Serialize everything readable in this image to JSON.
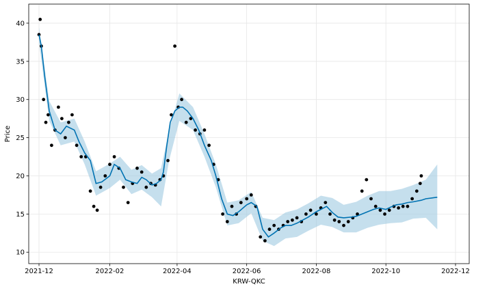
{
  "chart_data": {
    "type": "line",
    "title": "",
    "xlabel": "KRW-QKC",
    "ylabel": "Price",
    "grid": true,
    "xlim": [
      "2021-11-22",
      "2022-12-13"
    ],
    "ylim": [
      8.5,
      42.5
    ],
    "x_ticks": [
      {
        "date": "2021-12-01",
        "label": "2021-12"
      },
      {
        "date": "2022-02-01",
        "label": "2022-02"
      },
      {
        "date": "2022-04-01",
        "label": "2022-04"
      },
      {
        "date": "2022-06-01",
        "label": "2022-06"
      },
      {
        "date": "2022-08-01",
        "label": "2022-08"
      },
      {
        "date": "2022-10-01",
        "label": "2022-10"
      },
      {
        "date": "2022-12-01",
        "label": "2022-12"
      }
    ],
    "y_ticks": [
      10,
      15,
      20,
      25,
      30,
      35,
      40
    ],
    "colors": {
      "forecast_line": "#0072B2",
      "uncertainty_band": "#9ECAE1",
      "observed_points": "#000000"
    },
    "series": [
      {
        "name": "",
        "kind": "forecast",
        "x": [
          "2021-12-01",
          "2021-12-03",
          "2021-12-06",
          "2021-12-10",
          "2021-12-15",
          "2021-12-20",
          "2021-12-25",
          "2022-01-01",
          "2022-01-05",
          "2022-01-10",
          "2022-01-15",
          "2022-01-20",
          "2022-01-25",
          "2022-02-01",
          "2022-02-05",
          "2022-02-10",
          "2022-02-15",
          "2022-02-20",
          "2022-02-25",
          "2022-03-01",
          "2022-03-05",
          "2022-03-10",
          "2022-03-14",
          "2022-03-18",
          "2022-03-20",
          "2022-03-23",
          "2022-03-26",
          "2022-03-30",
          "2022-04-03",
          "2022-04-06",
          "2022-04-10",
          "2022-04-15",
          "2022-04-20",
          "2022-04-25",
          "2022-05-01",
          "2022-05-05",
          "2022-05-10",
          "2022-05-15",
          "2022-05-20",
          "2022-05-25",
          "2022-06-01",
          "2022-06-05",
          "2022-06-10",
          "2022-06-15",
          "2022-06-20",
          "2022-06-25",
          "2022-07-01",
          "2022-07-05",
          "2022-07-10",
          "2022-07-15",
          "2022-07-20",
          "2022-07-25",
          "2022-08-01",
          "2022-08-05",
          "2022-08-10",
          "2022-08-15",
          "2022-08-20",
          "2022-08-25",
          "2022-09-01",
          "2022-09-05",
          "2022-09-10",
          "2022-09-15",
          "2022-09-20",
          "2022-09-25",
          "2022-10-01",
          "2022-10-05",
          "2022-10-10",
          "2022-10-15",
          "2022-10-20",
          "2022-10-25",
          "2022-11-01",
          "2022-11-05",
          "2022-11-10",
          "2022-11-15"
        ],
        "y": [
          38.5,
          37.0,
          33.0,
          28.5,
          26.0,
          25.5,
          26.5,
          26.0,
          24.5,
          23.0,
          22.0,
          19.0,
          19.2,
          20.0,
          21.5,
          21.0,
          19.5,
          19.2,
          19.0,
          19.8,
          19.5,
          18.8,
          19.0,
          19.5,
          20.5,
          24.0,
          27.0,
          28.5,
          29.0,
          29.0,
          28.5,
          27.5,
          26.0,
          24.0,
          22.0,
          20.0,
          17.0,
          15.0,
          14.8,
          15.3,
          16.2,
          16.5,
          16.0,
          13.0,
          12.0,
          12.5,
          13.2,
          13.5,
          13.5,
          13.8,
          14.2,
          14.6,
          15.3,
          15.6,
          16.0,
          15.2,
          14.6,
          14.5,
          14.6,
          14.7,
          15.0,
          15.3,
          15.6,
          15.8,
          15.6,
          15.9,
          16.2,
          16.3,
          16.5,
          16.6,
          16.8,
          17.0,
          17.1,
          17.2
        ]
      },
      {
        "name": "",
        "kind": "uncertainty",
        "x": [
          "2021-12-01",
          "2021-12-10",
          "2021-12-20",
          "2022-01-01",
          "2022-01-10",
          "2022-01-20",
          "2022-02-01",
          "2022-02-10",
          "2022-02-20",
          "2022-03-01",
          "2022-03-10",
          "2022-03-18",
          "2022-03-25",
          "2022-04-03",
          "2022-04-15",
          "2022-04-25",
          "2022-05-05",
          "2022-05-15",
          "2022-05-25",
          "2022-06-05",
          "2022-06-15",
          "2022-06-25",
          "2022-07-05",
          "2022-07-15",
          "2022-07-25",
          "2022-08-05",
          "2022-08-15",
          "2022-08-25",
          "2022-09-05",
          "2022-09-15",
          "2022-09-25",
          "2022-10-05",
          "2022-10-15",
          "2022-10-25",
          "2022-11-05",
          "2022-11-15"
        ],
        "upper": [
          39.5,
          29.8,
          27.0,
          27.5,
          24.5,
          20.6,
          21.6,
          22.5,
          20.8,
          21.4,
          20.3,
          21.0,
          26.0,
          30.8,
          29.0,
          25.5,
          21.5,
          16.5,
          16.8,
          17.9,
          14.5,
          14.2,
          15.2,
          15.6,
          16.4,
          17.4,
          17.1,
          16.2,
          16.6,
          17.4,
          18.0,
          18.0,
          18.3,
          18.8,
          19.5,
          21.5
        ],
        "lower": [
          37.5,
          27.2,
          24.0,
          24.5,
          21.5,
          17.4,
          18.4,
          19.5,
          17.6,
          18.2,
          17.2,
          16.0,
          22.0,
          27.2,
          26.0,
          22.5,
          18.5,
          13.5,
          13.8,
          15.1,
          11.5,
          10.8,
          11.8,
          12.0,
          12.8,
          13.6,
          13.3,
          12.6,
          12.6,
          13.2,
          13.6,
          13.8,
          13.9,
          14.4,
          14.5,
          13.0
        ]
      },
      {
        "name": "",
        "kind": "observed",
        "x": [
          "2021-12-01",
          "2021-12-02",
          "2021-12-03",
          "2021-12-05",
          "2021-12-07",
          "2021-12-09",
          "2021-12-12",
          "2021-12-15",
          "2021-12-18",
          "2021-12-21",
          "2021-12-24",
          "2021-12-27",
          "2021-12-30",
          "2022-01-03",
          "2022-01-07",
          "2022-01-11",
          "2022-01-15",
          "2022-01-18",
          "2022-01-21",
          "2022-01-24",
          "2022-01-28",
          "2022-02-01",
          "2022-02-05",
          "2022-02-09",
          "2022-02-13",
          "2022-02-17",
          "2022-02-21",
          "2022-02-25",
          "2022-03-01",
          "2022-03-05",
          "2022-03-09",
          "2022-03-13",
          "2022-03-17",
          "2022-03-20",
          "2022-03-24",
          "2022-03-27",
          "2022-03-30",
          "2022-04-02",
          "2022-04-05",
          "2022-04-09",
          "2022-04-13",
          "2022-04-17",
          "2022-04-21",
          "2022-04-25",
          "2022-04-29",
          "2022-05-03",
          "2022-05-07",
          "2022-05-11",
          "2022-05-15",
          "2022-05-19",
          "2022-05-23",
          "2022-05-27",
          "2022-06-01",
          "2022-06-05",
          "2022-06-09",
          "2022-06-13",
          "2022-06-17",
          "2022-06-21",
          "2022-06-25",
          "2022-06-29",
          "2022-07-03",
          "2022-07-07",
          "2022-07-11",
          "2022-07-15",
          "2022-07-19",
          "2022-07-23",
          "2022-07-27",
          "2022-08-01",
          "2022-08-05",
          "2022-08-09",
          "2022-08-13",
          "2022-08-17",
          "2022-08-21",
          "2022-08-25",
          "2022-08-29",
          "2022-09-02",
          "2022-09-06",
          "2022-09-10",
          "2022-09-14",
          "2022-09-18",
          "2022-09-22",
          "2022-09-26",
          "2022-09-30",
          "2022-10-04",
          "2022-10-08",
          "2022-10-12",
          "2022-10-16",
          "2022-10-20",
          "2022-10-24",
          "2022-10-28",
          "2022-10-31",
          "2022-11-01"
        ],
        "y": [
          38.5,
          40.5,
          37.0,
          30.0,
          27.0,
          28.0,
          24.0,
          26.0,
          29.0,
          27.5,
          25.0,
          27.0,
          28.0,
          24.0,
          22.5,
          22.5,
          18.0,
          16.0,
          15.5,
          18.5,
          20.0,
          21.5,
          22.5,
          21.0,
          18.5,
          16.5,
          19.0,
          21.0,
          20.5,
          18.5,
          19.0,
          18.8,
          19.5,
          20.0,
          22.0,
          28.0,
          37.0,
          29.0,
          30.0,
          27.0,
          27.5,
          26.0,
          25.5,
          26.0,
          24.0,
          21.5,
          19.5,
          15.0,
          14.0,
          16.0,
          15.0,
          16.5,
          17.0,
          17.5,
          16.0,
          12.0,
          11.5,
          13.0,
          13.5,
          13.0,
          13.5,
          14.0,
          14.2,
          14.5,
          14.0,
          15.0,
          15.5,
          15.0,
          15.8,
          16.5,
          15.0,
          14.2,
          14.0,
          13.5,
          14.0,
          14.5,
          15.0,
          18.0,
          19.5,
          17.0,
          16.0,
          15.5,
          15.0,
          15.5,
          16.0,
          15.8,
          16.0,
          16.0,
          17.0,
          18.0,
          19.0,
          20.0
        ]
      }
    ]
  }
}
